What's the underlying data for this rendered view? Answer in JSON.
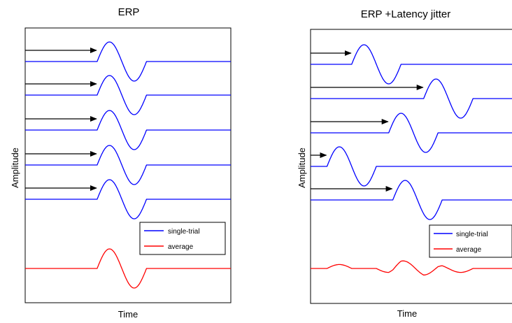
{
  "chart_data": [
    {
      "type": "line",
      "title": "ERP",
      "xlabel": "Time",
      "ylabel": "Amplitude",
      "xlim": [
        0,
        100
      ],
      "legend": {
        "placement": "lower-right",
        "entries": [
          {
            "label": "single-trial",
            "color": "#0000ff"
          },
          {
            "label": "average",
            "color": "#ff0000"
          }
        ]
      },
      "waveform_duration": 24,
      "series": [
        {
          "role": "trial",
          "color": "#0000ff",
          "baseline": 5,
          "onset": 35,
          "arrow_start": 0
        },
        {
          "role": "trial",
          "color": "#0000ff",
          "baseline": 4,
          "onset": 35,
          "arrow_start": 0
        },
        {
          "role": "trial",
          "color": "#0000ff",
          "baseline": 3,
          "onset": 35,
          "arrow_start": 0
        },
        {
          "role": "trial",
          "color": "#0000ff",
          "baseline": 2,
          "onset": 35,
          "arrow_start": 0
        },
        {
          "role": "trial",
          "color": "#0000ff",
          "baseline": 1,
          "onset": 35,
          "arrow_start": 0
        },
        {
          "role": "average",
          "color": "#ff0000",
          "baseline": -1,
          "onsets": [
            35
          ]
        }
      ]
    },
    {
      "type": "line",
      "title": "ERP +Latency jitter",
      "xlabel": "Time",
      "ylabel": "Amplitude",
      "xlim": [
        0,
        100
      ],
      "legend": {
        "placement": "lower-right",
        "entries": [
          {
            "label": "single-trial",
            "color": "#0000ff"
          },
          {
            "label": "average",
            "color": "#ff0000"
          }
        ]
      },
      "waveform_duration": 24,
      "series": [
        {
          "role": "trial",
          "color": "#0000ff",
          "baseline": 5,
          "onset": 20,
          "arrow_start": 0
        },
        {
          "role": "trial",
          "color": "#0000ff",
          "baseline": 4,
          "onset": 55,
          "arrow_start": 0
        },
        {
          "role": "trial",
          "color": "#0000ff",
          "baseline": 3,
          "onset": 38,
          "arrow_start": 0
        },
        {
          "role": "trial",
          "color": "#0000ff",
          "baseline": 2,
          "onset": 8,
          "arrow_start": 0
        },
        {
          "role": "trial",
          "color": "#0000ff",
          "baseline": 1,
          "onset": 40,
          "arrow_start": 0
        },
        {
          "role": "average",
          "color": "#ff0000",
          "baseline": -1,
          "onsets": [
            20,
            55,
            38,
            8,
            40
          ]
        }
      ]
    }
  ]
}
